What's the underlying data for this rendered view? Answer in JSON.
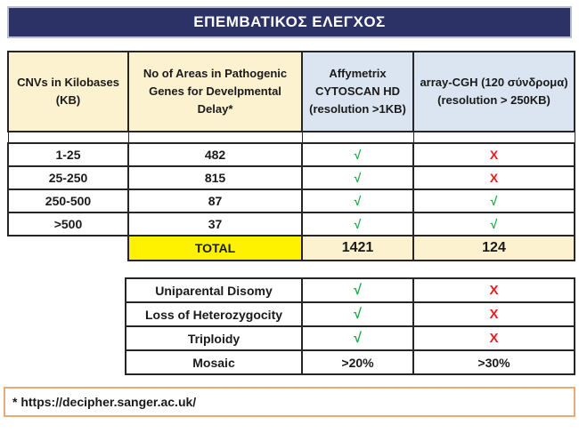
{
  "title": "ΕΠΕΜΒΑΤΙΚΟΣ ΕΛΕΓΧΟΣ",
  "colors": {
    "banner_bg": "#2d3266",
    "banner_border": "#b9bfd4",
    "banner_text": "#ffffff",
    "header_beige": "#fdf2d0",
    "header_blue": "#dbe5f1",
    "total_yellow": "#fff200",
    "check_green": "#21a849",
    "cross_red": "#ed1c24",
    "grid": "#262626",
    "footnote_border": "#eba978"
  },
  "marks": {
    "check": "√",
    "cross": "X"
  },
  "table1": {
    "headers": {
      "cnv": "CNVs in Kilobases\n(KB)",
      "areas": "No of Areas in Pathogenic\nGenes for Develpmental Delay*",
      "cytoscan": "Affymetrix\nCYTOSCAN HD\n(resolution >1KB)",
      "arraycgh": "array-CGH (120 σύνδρομα)\n(resolution > 250KB)"
    },
    "rows": [
      {
        "range": "1-25",
        "areas": "482",
        "cytoscan": "check",
        "arraycgh": "cross"
      },
      {
        "range": "25-250",
        "areas": "815",
        "cytoscan": "check",
        "arraycgh": "cross"
      },
      {
        "range": "250-500",
        "areas": "87",
        "cytoscan": "check",
        "arraycgh": "check"
      },
      {
        "range": ">500",
        "areas": "37",
        "cytoscan": "check",
        "arraycgh": "check"
      }
    ],
    "total": {
      "label": "TOTAL",
      "cytoscan": "1421",
      "arraycgh": "124"
    }
  },
  "table2": {
    "rows": [
      {
        "label": "Uniparental Disomy",
        "cytoscan": "check",
        "arraycgh": "cross"
      },
      {
        "label": "Loss of Heterozygocity",
        "cytoscan": "check",
        "arraycgh": "cross"
      },
      {
        "label": "Triploidy",
        "cytoscan": "check",
        "arraycgh": "cross"
      },
      {
        "label": "Mosaic",
        "cytoscan": ">20%",
        "arraycgh": ">30%"
      }
    ]
  },
  "footnote": "* https://decipher.sanger.ac.uk/"
}
